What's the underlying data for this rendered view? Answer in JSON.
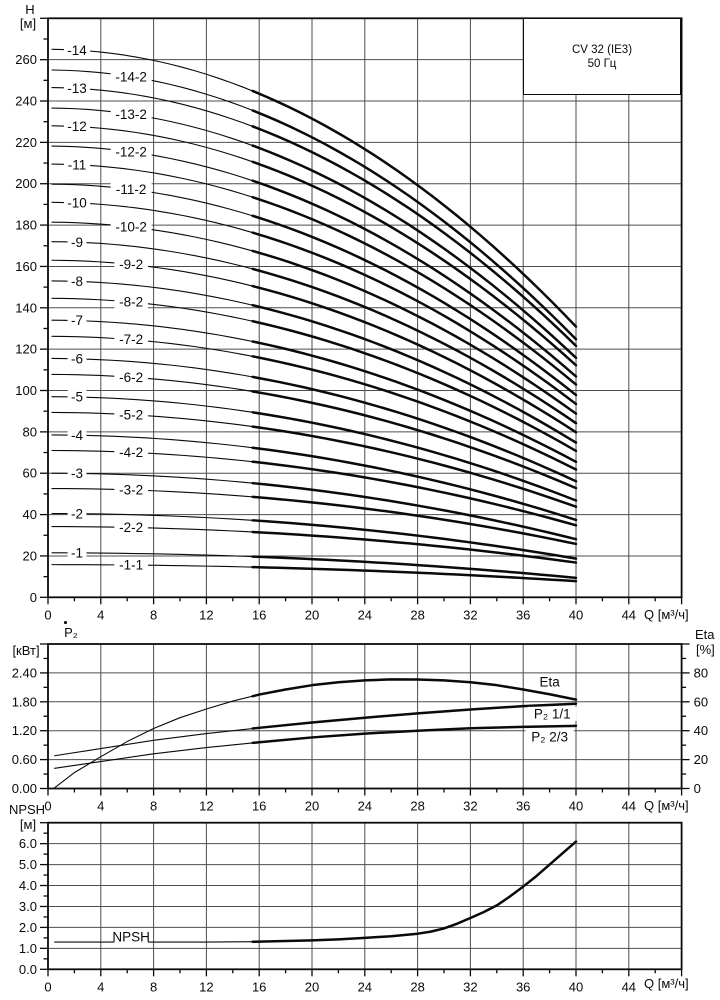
{
  "page": {
    "bg": "#ffffff",
    "fg": "#0a0a0a",
    "grid_color": "#4d4d4d"
  },
  "title_box": {
    "line1": "CV 32 (IE3)",
    "line2": "50 Гц"
  },
  "axes_titles": {
    "head_y": "H",
    "head_y_unit": "[м]",
    "flow": "Q [м³/ч]",
    "power_y": "P₂",
    "power_y_unit": "[кВт]",
    "eta_y": "Eta",
    "eta_y_unit": "[%]",
    "npsh_y": "NPSH",
    "npsh_y_unit": "[м]"
  },
  "chart_data": [
    {
      "id": "head",
      "type": "line",
      "title": "CV 32 (IE3) 50 Гц — head curves",
      "xlabel": "Q [м³/ч]",
      "ylabel": "H [м]",
      "x_max": 48,
      "x_major": 4,
      "x_minor": 2,
      "x_ticks": [
        0,
        4,
        8,
        12,
        16,
        20,
        24,
        28,
        32,
        36,
        40,
        44
      ],
      "y_max": 280,
      "y_major": 20,
      "y_minor": 10,
      "y_decimals": 0,
      "y_ticks": [
        0,
        20,
        40,
        60,
        80,
        100,
        120,
        140,
        160,
        180,
        200,
        220,
        240,
        260
      ],
      "grid": true,
      "q_draw_range": [
        0.3,
        40
      ],
      "bold_from_q": 15.5,
      "curve_model": "H(Q) = H0 - (H0-H40)*(Q/40)^2",
      "series": [
        {
          "label": "-14",
          "H0": 265.0,
          "H40": 130.9,
          "label_q": 2.2
        },
        {
          "label": "-14-2",
          "H0": 255.0,
          "H40": 124.8,
          "label_q": 6.3
        },
        {
          "label": "-13",
          "H0": 246.5,
          "H40": 121.6,
          "label_q": 2.2
        },
        {
          "label": "-13-2",
          "H0": 236.6,
          "H40": 115.8,
          "label_q": 6.3
        },
        {
          "label": "-12",
          "H0": 228.0,
          "H40": 112.2,
          "label_q": 2.2
        },
        {
          "label": "-12-2",
          "H0": 218.2,
          "H40": 106.8,
          "label_q": 6.3
        },
        {
          "label": "-11",
          "H0": 209.5,
          "H40": 102.9,
          "label_q": 2.2
        },
        {
          "label": "-11-2",
          "H0": 199.8,
          "H40": 97.8,
          "label_q": 6.3
        },
        {
          "label": "-10",
          "H0": 191.0,
          "H40": 93.5,
          "label_q": 2.2
        },
        {
          "label": "-10-2",
          "H0": 181.4,
          "H40": 88.8,
          "label_q": 6.3
        },
        {
          "label": "-9",
          "H0": 172.0,
          "H40": 84.2,
          "label_q": 2.2
        },
        {
          "label": "-9-2",
          "H0": 163.0,
          "H40": 79.8,
          "label_q": 6.3
        },
        {
          "label": "-8",
          "H0": 153.0,
          "H40": 74.8,
          "label_q": 2.2
        },
        {
          "label": "-8-2",
          "H0": 144.6,
          "H40": 70.8,
          "label_q": 6.3
        },
        {
          "label": "-7",
          "H0": 134.0,
          "H40": 65.5,
          "label_q": 2.2
        },
        {
          "label": "-7-2",
          "H0": 126.2,
          "H40": 61.8,
          "label_q": 6.3
        },
        {
          "label": "-6",
          "H0": 115.5,
          "H40": 56.1,
          "label_q": 2.2
        },
        {
          "label": "-6-2",
          "H0": 107.8,
          "H40": 52.8,
          "label_q": 6.3
        },
        {
          "label": "-5",
          "H0": 97.0,
          "H40": 46.8,
          "label_q": 2.2
        },
        {
          "label": "-5-2",
          "H0": 89.4,
          "H40": 43.8,
          "label_q": 6.3
        },
        {
          "label": "-4",
          "H0": 78.5,
          "H40": 37.4,
          "label_q": 2.2
        },
        {
          "label": "-4-2",
          "H0": 71.0,
          "H40": 34.8,
          "label_q": 6.3
        },
        {
          "label": "-3",
          "H0": 60.0,
          "H40": 28.1,
          "label_q": 2.2
        },
        {
          "label": "-3-2",
          "H0": 52.6,
          "H40": 25.8,
          "label_q": 6.3
        },
        {
          "label": "-2",
          "H0": 40.5,
          "H40": 18.7,
          "label_q": 2.2
        },
        {
          "label": "-2-2",
          "H0": 34.2,
          "H40": 16.8,
          "label_q": 6.3
        },
        {
          "label": "-1",
          "H0": 21.5,
          "H40": 9.4,
          "label_q": 2.2
        },
        {
          "label": "-1-1",
          "H0": 15.8,
          "H40": 7.8,
          "label_q": 6.3
        }
      ]
    },
    {
      "id": "power",
      "type": "line",
      "title": "Power P2 and efficiency Eta",
      "xlabel": "Q [м³/ч]",
      "ylabel_left": "P₂ [кВт]",
      "ylabel_right": "Eta [%]",
      "x_max": 48,
      "x_major": 4,
      "x_minor": 2,
      "x_ticks": [
        0,
        4,
        8,
        12,
        16,
        20,
        24,
        28,
        32,
        36,
        40,
        44
      ],
      "y_left_max": 3.0,
      "y_left_major": 0.6,
      "y_left_minor": 0.3,
      "y_left_decimals": 2,
      "y_left_ticks": [
        0,
        0.6,
        1.2,
        1.8,
        2.4
      ],
      "y_right_max": 100,
      "y_right_major": 20,
      "y_right_minor": 10,
      "y_right_decimals": 0,
      "y_right_ticks": [
        0,
        20,
        40,
        60,
        80
      ],
      "grid": true,
      "bold_from_q": 15.5,
      "series": [
        {
          "label": "Eta",
          "scale": "right",
          "points": [
            [
              0.5,
              0.5
            ],
            [
              2,
              11
            ],
            [
              4,
              22
            ],
            [
              6,
              32.5
            ],
            [
              8,
              41.5
            ],
            [
              10,
              49
            ],
            [
              12,
              55
            ],
            [
              14,
              60.5
            ],
            [
              16,
              65
            ],
            [
              18,
              68.5
            ],
            [
              20,
              71.5
            ],
            [
              22,
              73.5
            ],
            [
              24,
              74.8
            ],
            [
              26,
              75.5
            ],
            [
              28,
              75.4
            ],
            [
              30,
              74.8
            ],
            [
              32,
              73.5
            ],
            [
              34,
              71.5
            ],
            [
              36,
              68.5
            ],
            [
              38,
              65.2
            ],
            [
              40,
              61.5
            ]
          ],
          "label_pos": {
            "q": 38.0,
            "v": 73.7
          }
        },
        {
          "label": "P₂ 1/1",
          "scale": "left",
          "points": [
            [
              0.5,
              0.68
            ],
            [
              4,
              0.83
            ],
            [
              8,
              1.0
            ],
            [
              12,
              1.14
            ],
            [
              16,
              1.26
            ],
            [
              20,
              1.37
            ],
            [
              24,
              1.47
            ],
            [
              28,
              1.56
            ],
            [
              32,
              1.64
            ],
            [
              36,
              1.71
            ],
            [
              40,
              1.76
            ]
          ],
          "label_pos": {
            "q": 38.2,
            "v": 1.55
          }
        },
        {
          "label": "P₂ 2/3",
          "scale": "left",
          "points": [
            [
              0.5,
              0.42
            ],
            [
              4,
              0.56
            ],
            [
              8,
              0.72
            ],
            [
              12,
              0.85
            ],
            [
              16,
              0.96
            ],
            [
              20,
              1.06
            ],
            [
              24,
              1.14
            ],
            [
              28,
              1.2
            ],
            [
              32,
              1.25
            ],
            [
              36,
              1.28
            ],
            [
              40,
              1.3
            ]
          ],
          "label_pos": {
            "q": 38.0,
            "v": 1.07
          }
        }
      ]
    },
    {
      "id": "npsh",
      "type": "line",
      "title": "NPSH curve",
      "xlabel": "Q [м³/ч]",
      "ylabel": "NPSH [м]",
      "x_max": 48,
      "x_major": 4,
      "x_minor": 2,
      "x_ticks": [
        0,
        4,
        8,
        12,
        16,
        20,
        24,
        28,
        32,
        36,
        40,
        44
      ],
      "y_max": 7.0,
      "y_major": 1.0,
      "y_minor": 0.5,
      "y_decimals": 1,
      "y_ticks": [
        0,
        1,
        2,
        3,
        4,
        5,
        6
      ],
      "grid": true,
      "bold_from_q": 15.5,
      "series": [
        {
          "label": "NPSH",
          "scale": "left",
          "points": [
            [
              0.5,
              1.3
            ],
            [
              4,
              1.3
            ],
            [
              8,
              1.3
            ],
            [
              12,
              1.3
            ],
            [
              16,
              1.32
            ],
            [
              20,
              1.38
            ],
            [
              22,
              1.43
            ],
            [
              24,
              1.5
            ],
            [
              26,
              1.58
            ],
            [
              28,
              1.7
            ],
            [
              29,
              1.8
            ],
            [
              30,
              1.95
            ],
            [
              31,
              2.18
            ],
            [
              32,
              2.45
            ],
            [
              33,
              2.73
            ],
            [
              34,
              3.05
            ],
            [
              35,
              3.48
            ],
            [
              36,
              3.95
            ],
            [
              37,
              4.45
            ],
            [
              38,
              5.0
            ],
            [
              39,
              5.55
            ],
            [
              40,
              6.1
            ]
          ],
          "label_pos": {
            "q": 6.3,
            "v": 1.54
          }
        }
      ]
    }
  ]
}
